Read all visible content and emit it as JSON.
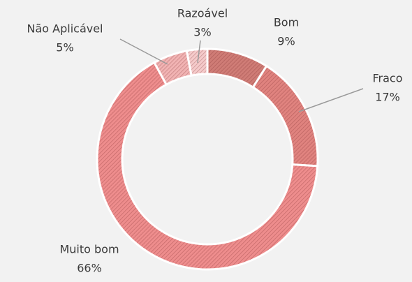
{
  "chart_data": {
    "type": "donut",
    "categories": [
      "Bom",
      "Fraco",
      "Muito bom",
      "Não Aplicável",
      "Razoável"
    ],
    "values": [
      9,
      17,
      66,
      5,
      3
    ],
    "value_labels": [
      "9%",
      "17%",
      "66%",
      "5%",
      "3%"
    ],
    "colors": [
      "#cf7c76",
      "#e0837f",
      "#ee8d8d",
      "#f1b3b3",
      "#f5cbcb"
    ]
  }
}
